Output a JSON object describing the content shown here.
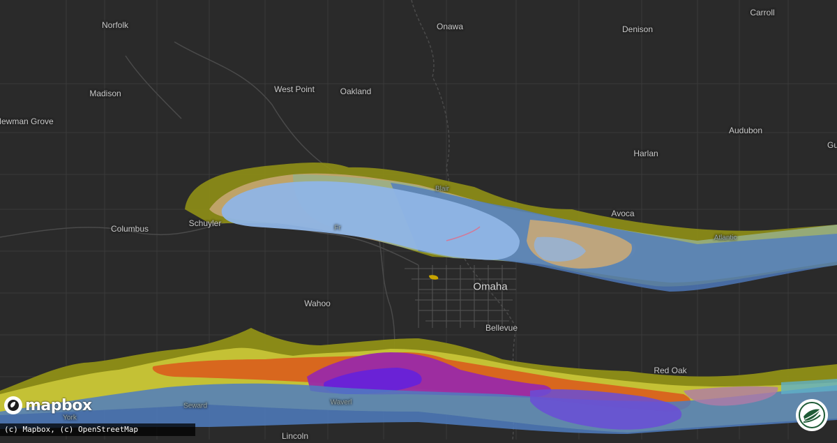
{
  "map": {
    "places": [
      {
        "id": "norfolk",
        "name": "Norfolk",
        "size": "medium"
      },
      {
        "id": "onawa",
        "name": "Onawa",
        "size": "medium"
      },
      {
        "id": "denison",
        "name": "Denison",
        "size": "medium"
      },
      {
        "id": "carroll",
        "name": "Carroll",
        "size": "medium"
      },
      {
        "id": "madison",
        "name": "Madison",
        "size": "medium"
      },
      {
        "id": "west-point",
        "name": "West Point",
        "size": "medium"
      },
      {
        "id": "oakland",
        "name": "Oakland",
        "size": "medium"
      },
      {
        "id": "newman-grove",
        "name": "Newman Grove",
        "size": "medium"
      },
      {
        "id": "audubon",
        "name": "Audubon",
        "size": "medium"
      },
      {
        "id": "harlan",
        "name": "Harlan",
        "size": "medium"
      },
      {
        "id": "blair",
        "name": "Blair",
        "size": "small"
      },
      {
        "id": "avoca",
        "name": "Avoca",
        "size": "medium"
      },
      {
        "id": "columbus",
        "name": "Columbus",
        "size": "medium"
      },
      {
        "id": "schuyler",
        "name": "Schuyler",
        "size": "medium"
      },
      {
        "id": "fremont",
        "name": "Fr",
        "size": "small"
      },
      {
        "id": "atlantic",
        "name": "Atlantic",
        "size": "small"
      },
      {
        "id": "omaha",
        "name": "Omaha",
        "size": "major"
      },
      {
        "id": "wahoo",
        "name": "Wahoo",
        "size": "medium"
      },
      {
        "id": "bellevue",
        "name": "Bellevue",
        "size": "medium"
      },
      {
        "id": "red-oak",
        "name": "Red Oak",
        "size": "medium"
      },
      {
        "id": "seward",
        "name": "Seward",
        "size": "small"
      },
      {
        "id": "york",
        "name": "York",
        "size": "small"
      },
      {
        "id": "waverly",
        "name": "Waverl",
        "size": "small"
      },
      {
        "id": "lincoln",
        "name": "Lincoln",
        "size": "medium"
      },
      {
        "id": "gu",
        "name": "Gu",
        "size": "medium"
      }
    ],
    "colors": {
      "background": "#2a2a2a",
      "olive": "#8f8f16",
      "yellow": "#c7c437",
      "orange": "#d9621e",
      "magenta": "#9a2aa8",
      "purple": "#6a22d6",
      "light_blue": "#8fb5e6",
      "steel_blue": "#4f7cc0",
      "sage": "#98b08a",
      "tan": "#c9a877"
    }
  },
  "branding": {
    "logo_text": "mapbox",
    "attribution": "(c) Mapbox, (c) OpenStreetMap",
    "badge_icon": "globe-leaf-icon"
  }
}
